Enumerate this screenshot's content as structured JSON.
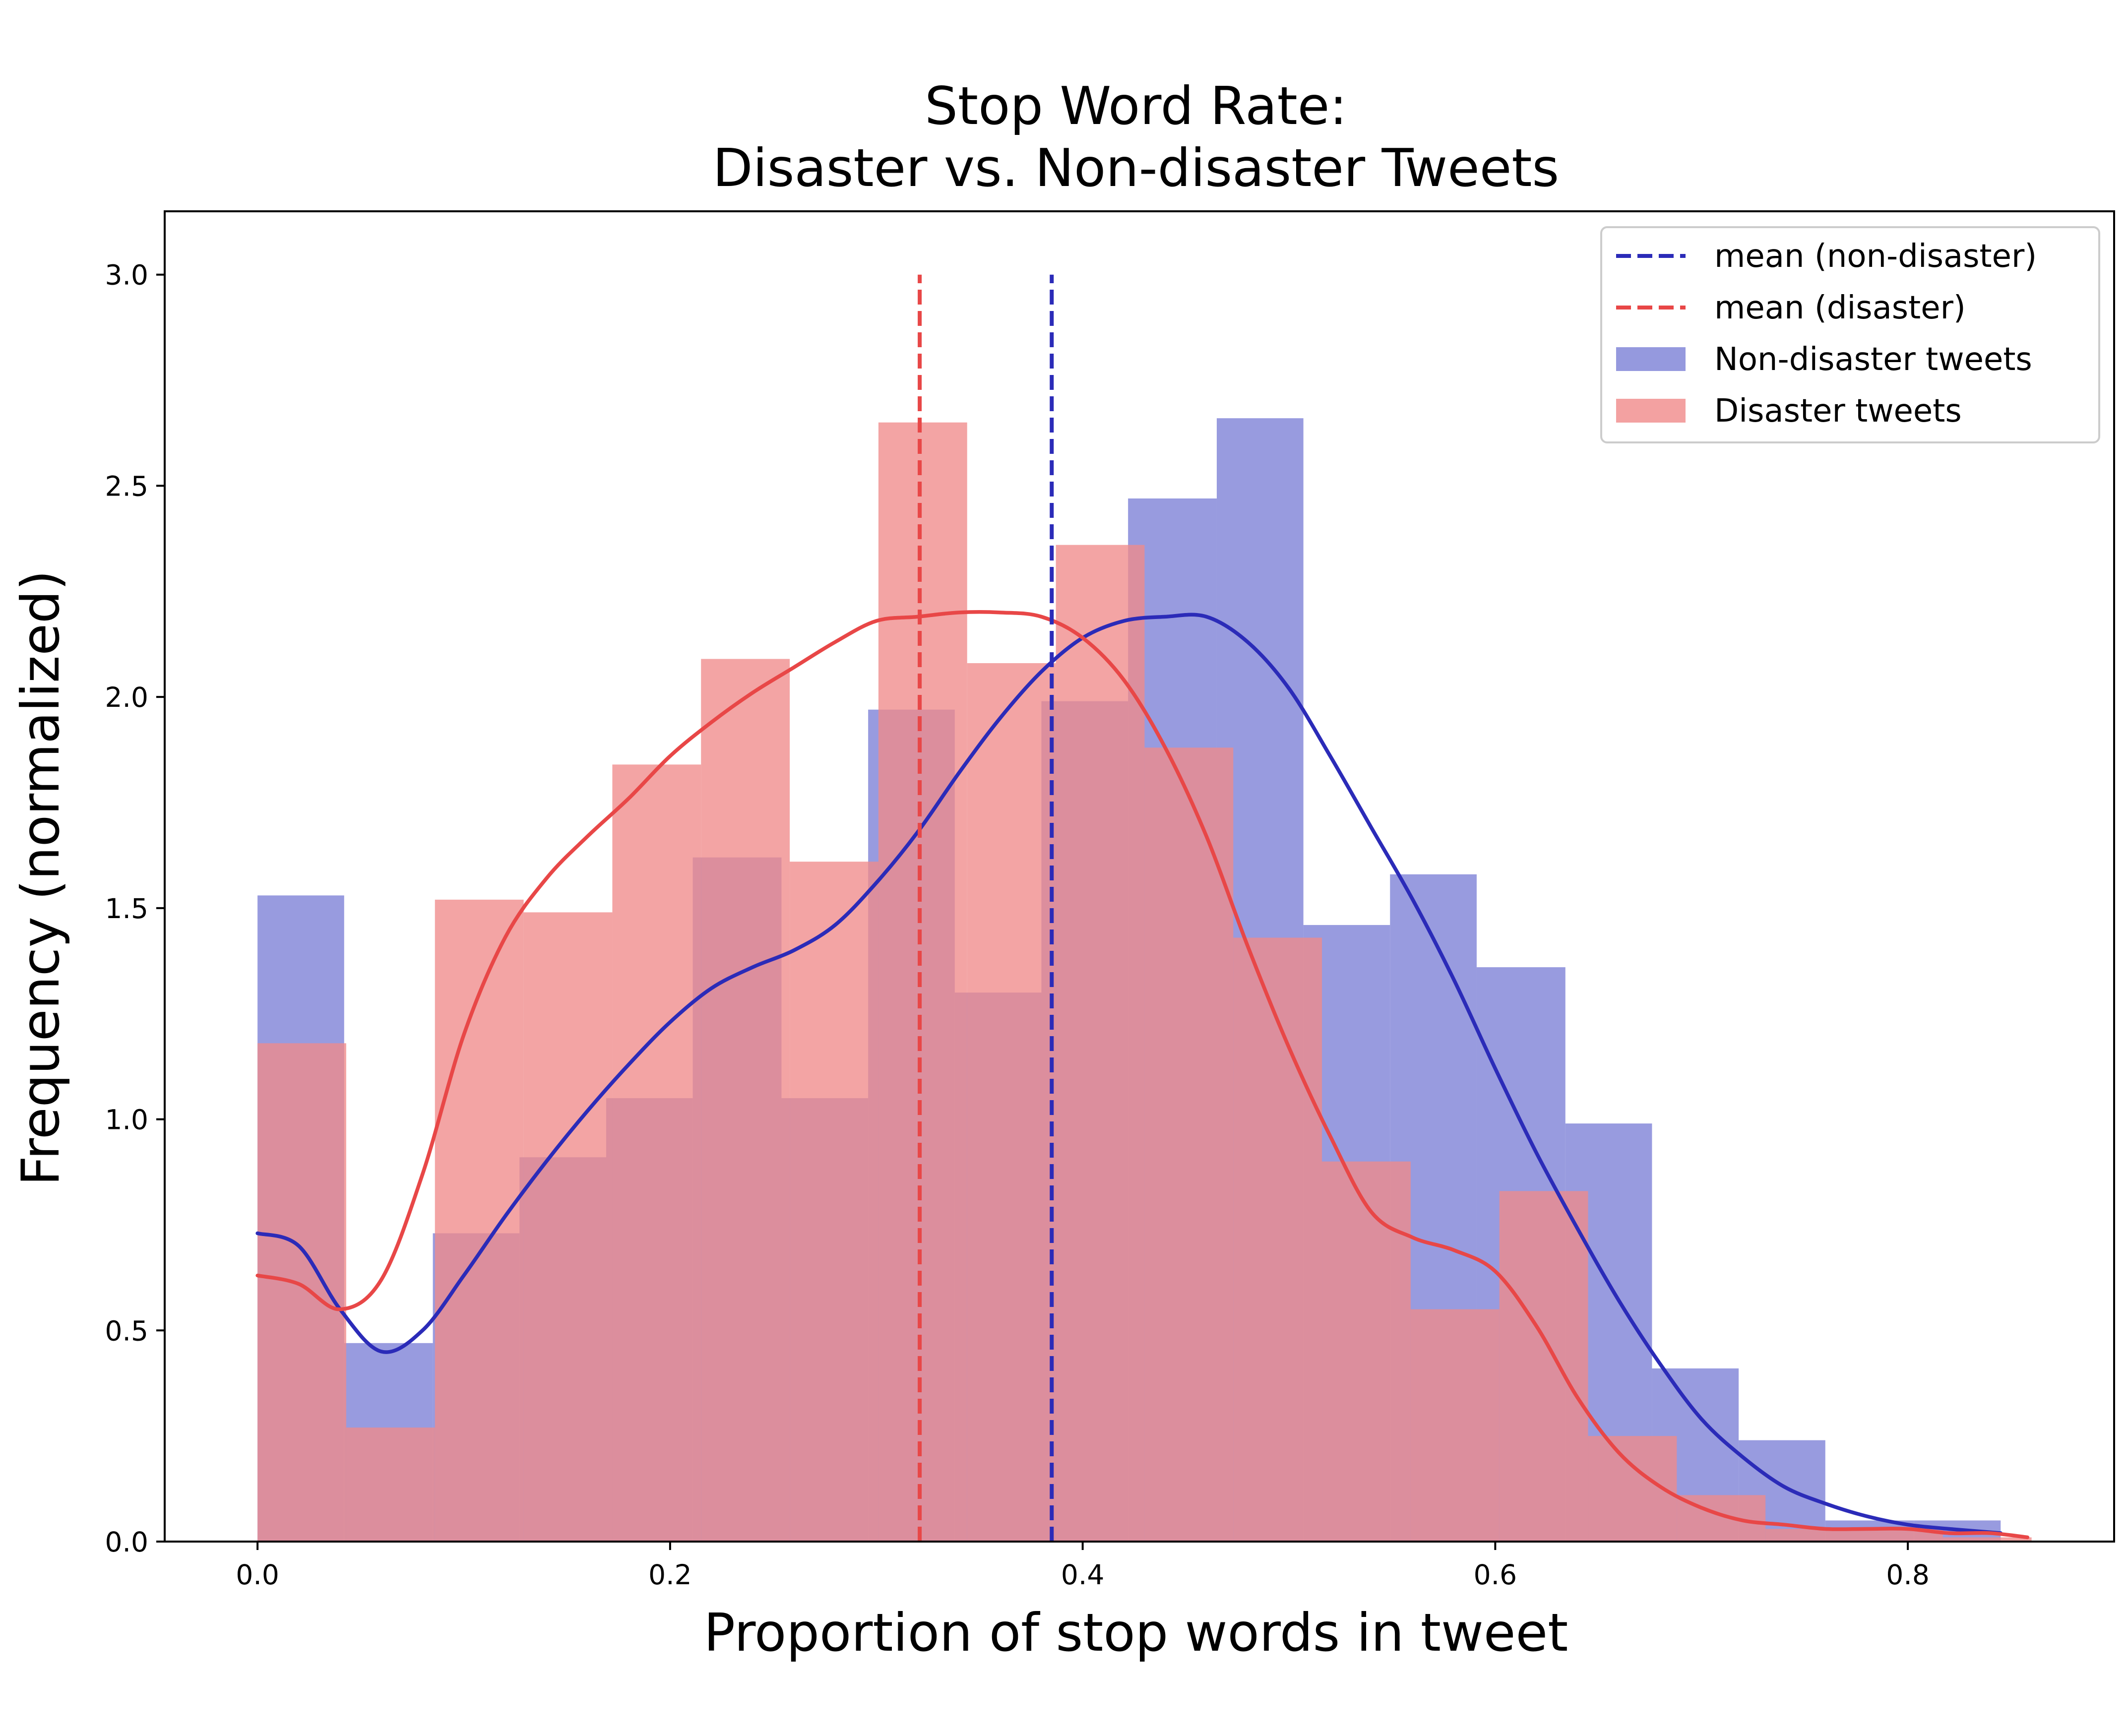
{
  "chart_data": {
    "type": "histogram",
    "title": [
      "Stop Word Rate:",
      "Disaster vs. Non-disaster Tweets"
    ],
    "xlabel": "Proportion of stop words in tweet",
    "ylabel": "Frequency (normalized)",
    "xlim": [
      -0.045,
      0.9
    ],
    "ylim": [
      0,
      3.15
    ],
    "xticks": [
      0.0,
      0.2,
      0.4,
      0.6,
      0.8
    ],
    "xtick_labels": [
      "0.0",
      "0.2",
      "0.4",
      "0.6",
      "0.8"
    ],
    "yticks": [
      0.0,
      0.5,
      1.0,
      1.5,
      2.0,
      2.5,
      3.0
    ],
    "ytick_labels": [
      "0.0",
      "0.5",
      "1.0",
      "1.5",
      "2.0",
      "2.5",
      "3.0"
    ],
    "grid": false,
    "legend_position": "upper right",
    "series": [
      {
        "name": "Non-disaster tweets",
        "kind": "hist",
        "color": "#7b7fd6",
        "opacity": 0.78,
        "bins": [
          {
            "x0": 0.0,
            "x1": 0.042,
            "value": 1.53
          },
          {
            "x0": 0.042,
            "x1": 0.085,
            "value": 0.47
          },
          {
            "x0": 0.085,
            "x1": 0.127,
            "value": 0.73
          },
          {
            "x0": 0.127,
            "x1": 0.169,
            "value": 0.91
          },
          {
            "x0": 0.169,
            "x1": 0.211,
            "value": 1.05
          },
          {
            "x0": 0.211,
            "x1": 0.254,
            "value": 1.62
          },
          {
            "x0": 0.254,
            "x1": 0.296,
            "value": 1.05
          },
          {
            "x0": 0.296,
            "x1": 0.338,
            "value": 1.97
          },
          {
            "x0": 0.338,
            "x1": 0.38,
            "value": 1.3
          },
          {
            "x0": 0.38,
            "x1": 0.422,
            "value": 1.99
          },
          {
            "x0": 0.422,
            "x1": 0.465,
            "value": 2.47
          },
          {
            "x0": 0.465,
            "x1": 0.507,
            "value": 2.66
          },
          {
            "x0": 0.507,
            "x1": 0.549,
            "value": 1.46
          },
          {
            "x0": 0.549,
            "x1": 0.591,
            "value": 1.58
          },
          {
            "x0": 0.591,
            "x1": 0.634,
            "value": 1.36
          },
          {
            "x0": 0.634,
            "x1": 0.676,
            "value": 0.99
          },
          {
            "x0": 0.676,
            "x1": 0.718,
            "value": 0.41
          },
          {
            "x0": 0.718,
            "x1": 0.76,
            "value": 0.24
          },
          {
            "x0": 0.76,
            "x1": 0.803,
            "value": 0.05
          },
          {
            "x0": 0.803,
            "x1": 0.845,
            "value": 0.05
          }
        ]
      },
      {
        "name": "Disaster tweets",
        "kind": "hist",
        "color": "#f08a8a",
        "opacity": 0.78,
        "bins": [
          {
            "x0": 0.0,
            "x1": 0.043,
            "value": 1.18
          },
          {
            "x0": 0.043,
            "x1": 0.086,
            "value": 0.27
          },
          {
            "x0": 0.086,
            "x1": 0.129,
            "value": 1.52
          },
          {
            "x0": 0.129,
            "x1": 0.172,
            "value": 1.49
          },
          {
            "x0": 0.172,
            "x1": 0.215,
            "value": 1.84
          },
          {
            "x0": 0.215,
            "x1": 0.258,
            "value": 2.09
          },
          {
            "x0": 0.258,
            "x1": 0.301,
            "value": 1.61
          },
          {
            "x0": 0.301,
            "x1": 0.344,
            "value": 2.65
          },
          {
            "x0": 0.344,
            "x1": 0.387,
            "value": 2.08
          },
          {
            "x0": 0.387,
            "x1": 0.43,
            "value": 2.36
          },
          {
            "x0": 0.43,
            "x1": 0.473,
            "value": 1.88
          },
          {
            "x0": 0.473,
            "x1": 0.516,
            "value": 1.43
          },
          {
            "x0": 0.516,
            "x1": 0.559,
            "value": 0.9
          },
          {
            "x0": 0.559,
            "x1": 0.602,
            "value": 0.55
          },
          {
            "x0": 0.602,
            "x1": 0.645,
            "value": 0.83
          },
          {
            "x0": 0.645,
            "x1": 0.688,
            "value": 0.25
          },
          {
            "x0": 0.688,
            "x1": 0.731,
            "value": 0.11
          },
          {
            "x0": 0.731,
            "x1": 0.774,
            "value": 0.03
          },
          {
            "x0": 0.774,
            "x1": 0.817,
            "value": 0.03
          },
          {
            "x0": 0.817,
            "x1": 0.86,
            "value": 0.01
          }
        ]
      },
      {
        "name": "kde (non-disaster)",
        "kind": "line",
        "color": "#2b2bb8",
        "x": [
          0.0,
          0.02,
          0.04,
          0.06,
          0.08,
          0.1,
          0.12,
          0.14,
          0.16,
          0.18,
          0.2,
          0.22,
          0.24,
          0.26,
          0.28,
          0.3,
          0.32,
          0.34,
          0.36,
          0.38,
          0.4,
          0.42,
          0.44,
          0.46,
          0.48,
          0.5,
          0.52,
          0.54,
          0.56,
          0.58,
          0.6,
          0.62,
          0.64,
          0.66,
          0.68,
          0.7,
          0.72,
          0.74,
          0.76,
          0.78,
          0.8,
          0.82,
          0.845
        ],
        "y": [
          0.73,
          0.7,
          0.55,
          0.45,
          0.5,
          0.63,
          0.77,
          0.9,
          1.02,
          1.13,
          1.23,
          1.31,
          1.36,
          1.4,
          1.46,
          1.56,
          1.68,
          1.82,
          1.95,
          2.06,
          2.14,
          2.18,
          2.19,
          2.19,
          2.13,
          2.02,
          1.86,
          1.69,
          1.52,
          1.33,
          1.12,
          0.92,
          0.74,
          0.57,
          0.42,
          0.29,
          0.2,
          0.13,
          0.09,
          0.06,
          0.04,
          0.03,
          0.02
        ]
      },
      {
        "name": "kde (disaster)",
        "kind": "line",
        "color": "#e84747",
        "x": [
          0.0,
          0.02,
          0.04,
          0.06,
          0.08,
          0.1,
          0.12,
          0.14,
          0.16,
          0.18,
          0.2,
          0.22,
          0.24,
          0.26,
          0.28,
          0.3,
          0.32,
          0.34,
          0.36,
          0.38,
          0.4,
          0.42,
          0.44,
          0.46,
          0.48,
          0.5,
          0.52,
          0.54,
          0.56,
          0.58,
          0.6,
          0.62,
          0.64,
          0.66,
          0.68,
          0.7,
          0.72,
          0.74,
          0.76,
          0.78,
          0.8,
          0.82,
          0.84,
          0.858
        ],
        "y": [
          0.63,
          0.61,
          0.55,
          0.62,
          0.87,
          1.2,
          1.43,
          1.57,
          1.67,
          1.76,
          1.86,
          1.94,
          2.01,
          2.07,
          2.13,
          2.18,
          2.19,
          2.2,
          2.2,
          2.19,
          2.14,
          2.04,
          1.88,
          1.67,
          1.41,
          1.17,
          0.96,
          0.78,
          0.72,
          0.69,
          0.64,
          0.51,
          0.34,
          0.21,
          0.13,
          0.08,
          0.05,
          0.04,
          0.03,
          0.03,
          0.03,
          0.02,
          0.02,
          0.01
        ]
      }
    ],
    "mean_lines": [
      {
        "name": "mean (non-disaster)",
        "x": 0.385,
        "ymax": 3.0,
        "color": "#2b2bb8",
        "style": "dashed"
      },
      {
        "name": "mean (disaster)",
        "x": 0.321,
        "ymax": 3.0,
        "color": "#e84747",
        "style": "dashed"
      }
    ],
    "legend": [
      {
        "label": "mean (non-disaster)",
        "kind": "dashed-line",
        "color": "#2b2bb8"
      },
      {
        "label": "mean (disaster)",
        "kind": "dashed-line",
        "color": "#e84747"
      },
      {
        "label": "Non-disaster tweets",
        "kind": "patch",
        "color": "#7b7fd6"
      },
      {
        "label": "Disaster tweets",
        "kind": "patch",
        "color": "#f08a8a"
      }
    ]
  }
}
